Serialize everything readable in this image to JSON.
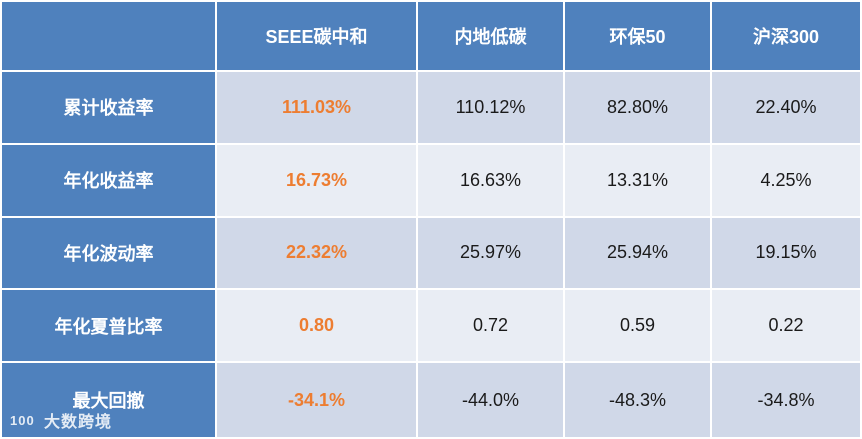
{
  "table": {
    "headers": [
      "",
      "SEEE碳中和",
      "内地低碳",
      "环保50",
      "沪深300"
    ],
    "rows": [
      {
        "label": "累计收益率",
        "values": [
          "111.03%",
          "110.12%",
          "82.80%",
          "22.40%"
        ]
      },
      {
        "label": "年化收益率",
        "values": [
          "16.73%",
          "16.63%",
          "13.31%",
          "4.25%"
        ]
      },
      {
        "label": "年化波动率",
        "values": [
          "22.32%",
          "25.97%",
          "25.94%",
          "19.15%"
        ]
      },
      {
        "label": "年化夏普比率",
        "values": [
          "0.80",
          "0.72",
          "0.59",
          "0.22"
        ]
      },
      {
        "label": "最大回撤",
        "values": [
          "-34.1%",
          "-44.0%",
          "-48.3%",
          "-34.8%"
        ]
      }
    ]
  },
  "colors": {
    "header_bg": "#4f81bd",
    "row_odd": "#d0d8e8",
    "row_even": "#e9edf4",
    "highlight": "#ed7d31"
  },
  "watermark": {
    "logo": "100",
    "text": "大数跨境"
  }
}
